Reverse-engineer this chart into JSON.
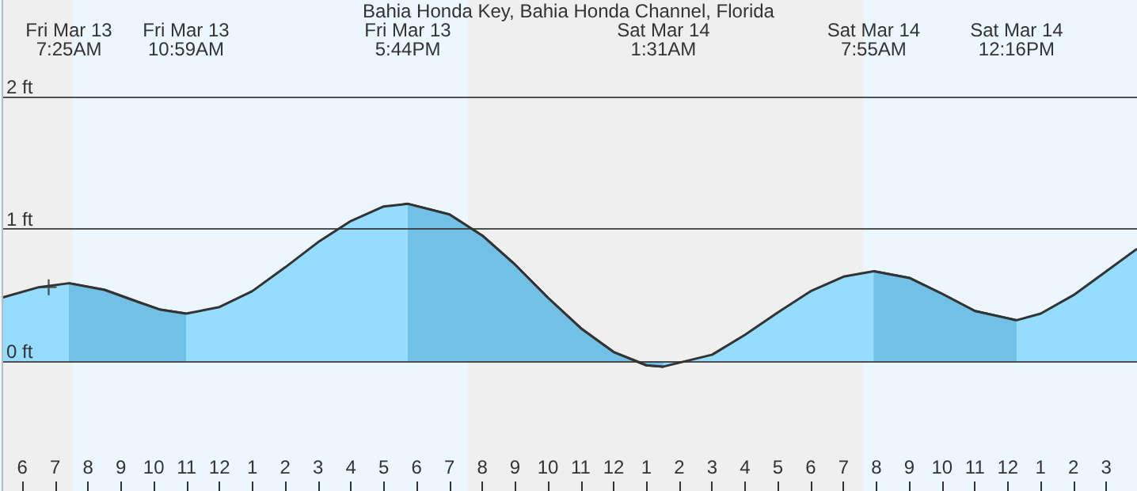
{
  "chart_data": {
    "type": "area",
    "title": "Bahia Honda Key, Bahia Honda Channel, Florida",
    "annotations": [
      "Fri Mar 13\n7:25AM",
      "Fri Mar 13\n10:59AM",
      "Fri Mar 13\n5:44PM",
      "Sat Mar 14\n1:31AM",
      "Sat Mar 14\n7:55AM",
      "Sat Mar 14\n12:16PM"
    ],
    "series": [
      {
        "color": "#96dcfe",
        "x": [
          "--03-13T05:22",
          "--03-13T06:30",
          "--03-13T07:25",
          "--03-13T08:30",
          "--03-13T09:30",
          "--03-13T10:12",
          "--03-13T10:59",
          "--03-13T12:00",
          "--03-13T13:00",
          "--03-13T14:00",
          "--03-13T15:00",
          "--03-13T16:00",
          "--03-13T17:00",
          "--03-13T17:44",
          "--03-13T19:00",
          "--03-13T20:00",
          "--03-13T21:00",
          "--03-13T22:00",
          "--03-13T23:00",
          "--03-14T00:00",
          "--03-14T01:00",
          "--03-14T01:31",
          "--03-14T03:00",
          "--03-14T04:00",
          "--03-14T05:00",
          "--03-14T06:00",
          "--03-14T07:00",
          "--03-14T07:55",
          "--03-14T09:00",
          "--03-14T10:00",
          "--03-14T11:00",
          "--03-14T12:16",
          "--03-14T13:00",
          "--03-14T14:00",
          "--03-14T15:00",
          "--03-14T15:56"
        ],
        "values": [
          0.48,
          0.56,
          0.59,
          0.54,
          0.45,
          0.39,
          0.36,
          0.41,
          0.53,
          0.71,
          0.9,
          1.06,
          1.17,
          1.19,
          1.11,
          0.95,
          0.73,
          0.48,
          0.25,
          0.07,
          -0.03,
          -0.04,
          0.05,
          0.2,
          0.37,
          0.53,
          0.64,
          0.68,
          0.63,
          0.51,
          0.38,
          0.31,
          0.36,
          0.5,
          0.68,
          0.85
        ]
      },
      {
        "color": "#72c0e5",
        "x": [
          "--03-13T07:25",
          "--03-13T08:30",
          "--03-13T09:30",
          "--03-13T10:12",
          "--03-13T10:59",
          "--03-13T12:00",
          "--03-13T17:44",
          "--03-13T19:00",
          "--03-13T20:00",
          "--03-13T21:00",
          "--03-13T22:00",
          "--03-13T23:00",
          "--03-14T00:00",
          "--03-14T01:00",
          "--03-14T01:31",
          "--03-14T03:00",
          "--03-14T07:55",
          "--03-14T09:00",
          "--03-14T10:00",
          "--03-14T11:00",
          "--03-14T12:16"
        ],
        "values": [
          0.59,
          0.54,
          0.45,
          0.39,
          0.36,
          null,
          1.19,
          1.11,
          0.95,
          0.73,
          0.48,
          0.25,
          0.07,
          -0.03,
          -0.04,
          null,
          0.68,
          0.63,
          0.51,
          0.38,
          0.31
        ]
      },
      {
        "type": "scatter",
        "color": "#333333",
        "marker": "cross",
        "x": [
          "--03-13T06:48"
        ],
        "values": [
          0.56
        ]
      }
    ],
    "bands": [
      {
        "axis": "x",
        "from": "--03-13T05:22",
        "to": "--03-13T07:32",
        "color": "#efefef"
      },
      {
        "axis": "x",
        "from": "--03-13T19:34",
        "to": "--03-14T07:36",
        "color": "#efefef"
      }
    ],
    "xlim": [
      "--03-13T05:22",
      "--03-14T15:56"
    ],
    "xticks": [
      {
        "value": "--03-13T06:00",
        "label": "6"
      },
      {
        "value": "--03-13T07:00",
        "label": "7"
      },
      {
        "value": "--03-13T08:00",
        "label": "8"
      },
      {
        "value": "--03-13T09:00",
        "label": "9"
      },
      {
        "value": "--03-13T10:00",
        "label": "10"
      },
      {
        "value": "--03-13T11:00",
        "label": "11"
      },
      {
        "value": "--03-13T12:00",
        "label": "12"
      },
      {
        "value": "--03-13T13:00",
        "label": "1"
      },
      {
        "value": "--03-13T14:00",
        "label": "2"
      },
      {
        "value": "--03-13T15:00",
        "label": "3"
      },
      {
        "value": "--03-13T16:00",
        "label": "4"
      },
      {
        "value": "--03-13T17:00",
        "label": "5"
      },
      {
        "value": "--03-13T18:00",
        "label": "6"
      },
      {
        "value": "--03-13T19:00",
        "label": "7"
      },
      {
        "value": "--03-13T20:00",
        "label": "8"
      },
      {
        "value": "--03-13T21:00",
        "label": "9"
      },
      {
        "value": "--03-13T22:00",
        "label": "10"
      },
      {
        "value": "--03-13T23:00",
        "label": "11"
      },
      {
        "value": "--03-14T00:00",
        "label": "12"
      },
      {
        "value": "--03-14T01:00",
        "label": "1"
      },
      {
        "value": "--03-14T02:00",
        "label": "2"
      },
      {
        "value": "--03-14T03:00",
        "label": "3"
      },
      {
        "value": "--03-14T04:00",
        "label": "4"
      },
      {
        "value": "--03-14T05:00",
        "label": "5"
      },
      {
        "value": "--03-14T06:00",
        "label": "6"
      },
      {
        "value": "--03-14T07:00",
        "label": "7"
      },
      {
        "value": "--03-14T08:00",
        "label": "8"
      },
      {
        "value": "--03-14T09:00",
        "label": "9"
      },
      {
        "value": "--03-14T10:00",
        "label": "10"
      },
      {
        "value": "--03-14T11:00",
        "label": "11"
      },
      {
        "value": "--03-14T12:00",
        "label": "12"
      },
      {
        "value": "--03-14T13:00",
        "label": "1"
      },
      {
        "value": "--03-14T14:00",
        "label": "2"
      },
      {
        "value": "--03-14T15:00",
        "label": "3"
      }
    ],
    "ylim": [
      -0.98,
      2.73
    ],
    "yticks": [
      {
        "value": 0,
        "label": "0 ft"
      },
      {
        "value": 1,
        "label": "1 ft"
      },
      {
        "value": 2,
        "label": "2 ft"
      }
    ],
    "grid": "y",
    "line_style": "solid"
  }
}
